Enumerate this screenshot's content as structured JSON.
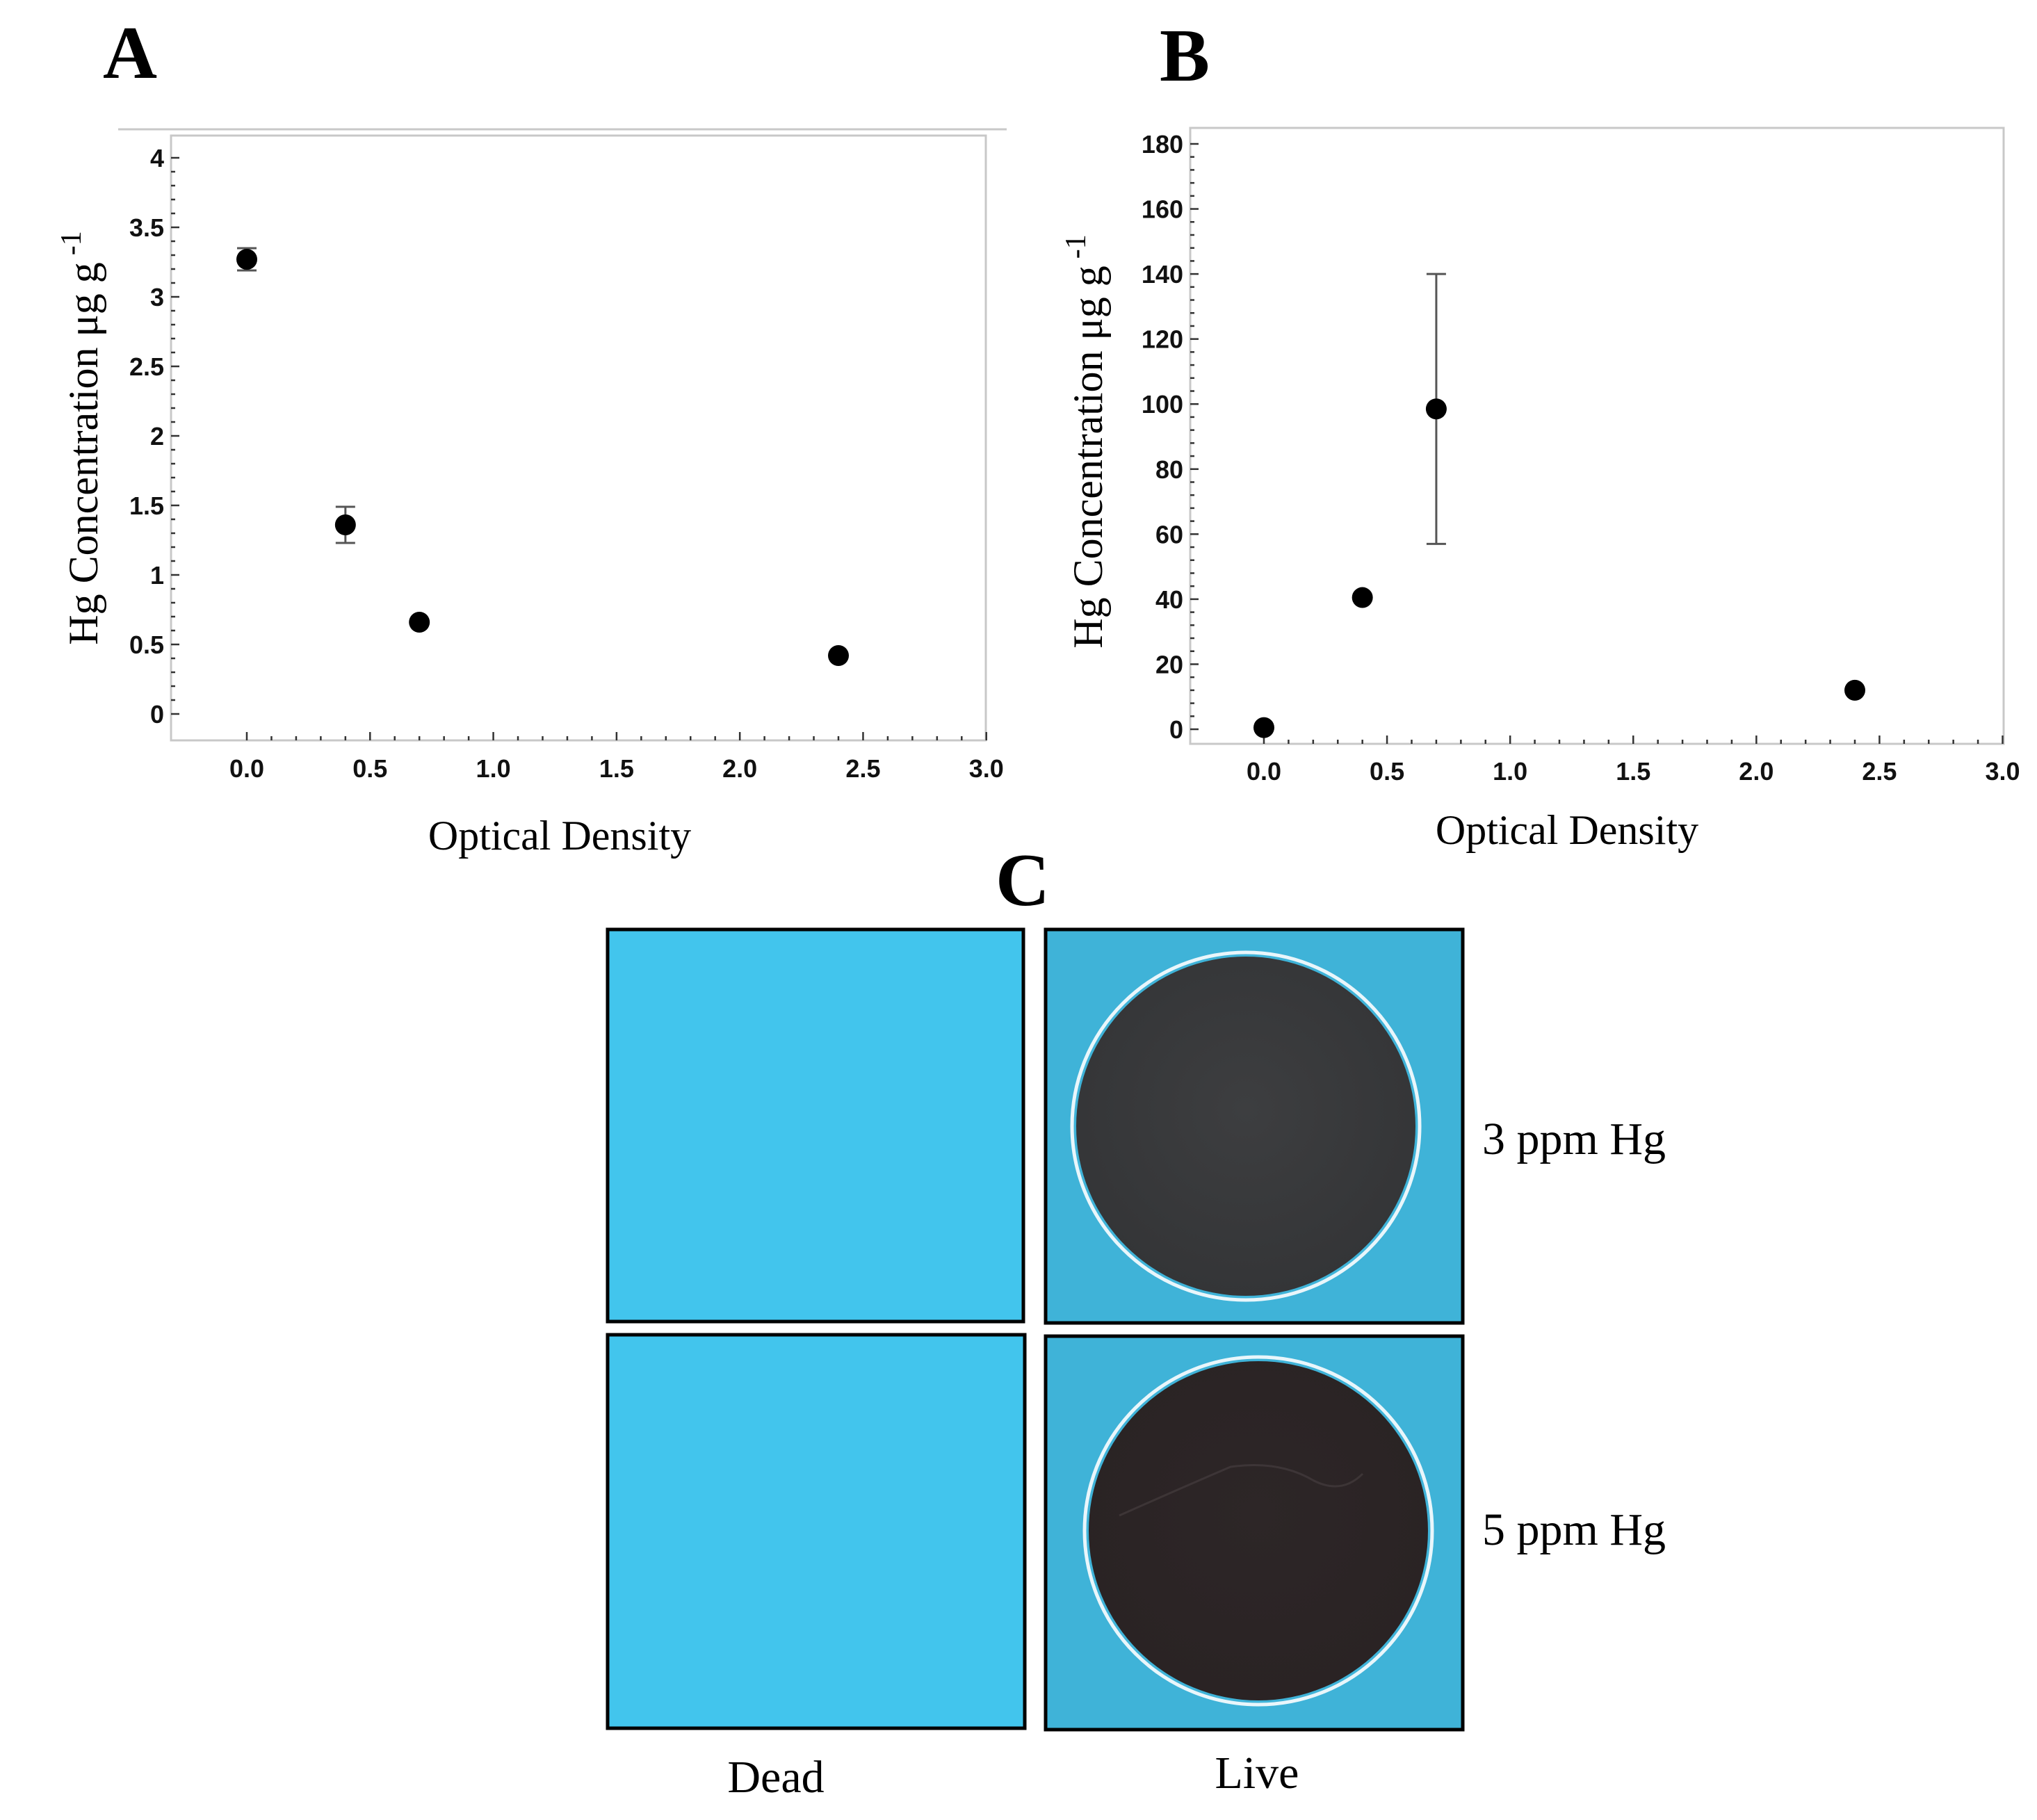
{
  "panels": {
    "a_letter": "A",
    "b_letter": "B",
    "c_letter": "C"
  },
  "chart_data": [
    {
      "id": "A",
      "type": "scatter",
      "title": "",
      "xlabel": "Optical Density",
      "ylabel": "Hg Concentration μg g",
      "ylabel_superscript": "-1",
      "xlim": [
        -0.3,
        3.0
      ],
      "ylim": [
        -0.2,
        4.2
      ],
      "xticks": [
        0.0,
        0.5,
        1.0,
        1.5,
        2.0,
        2.5,
        3.0
      ],
      "xtick_labels": [
        "0.0",
        "0.5",
        "1.0",
        "1.5",
        "2.0",
        "2.5",
        "3.0"
      ],
      "yticks": [
        0,
        0.5,
        1,
        1.5,
        2,
        2.5,
        3,
        3.5,
        4
      ],
      "ytick_labels": [
        "0",
        "0.5",
        "1",
        "1.5",
        "2",
        "2.5",
        "3",
        "3.5",
        "4"
      ],
      "points": [
        {
          "x": 0.0,
          "y": 3.27,
          "err": 0.08
        },
        {
          "x": 0.4,
          "y": 1.36,
          "err": 0.13
        },
        {
          "x": 0.7,
          "y": 0.66,
          "err": 0
        },
        {
          "x": 2.4,
          "y": 0.42,
          "err": 0
        }
      ],
      "grid": false
    },
    {
      "id": "B",
      "type": "scatter",
      "title": "",
      "xlabel": "Optical Density",
      "ylabel": "Hg Concentration μg g",
      "ylabel_superscript": "-1",
      "xlim": [
        -0.3,
        3.0
      ],
      "ylim": [
        -4,
        185
      ],
      "xticks": [
        0.0,
        0.5,
        1.0,
        1.5,
        2.0,
        2.5,
        3.0
      ],
      "xtick_labels": [
        "0.0",
        "0.5",
        "1.0",
        "1.5",
        "2.0",
        "2.5",
        "3.0"
      ],
      "yticks": [
        0,
        20,
        40,
        60,
        80,
        100,
        120,
        140,
        160,
        180
      ],
      "ytick_labels": [
        "0",
        "20",
        "40",
        "60",
        "80",
        "100",
        "120",
        "140",
        "160",
        "180"
      ],
      "points": [
        {
          "x": 0.0,
          "y": 0.5,
          "err": 0
        },
        {
          "x": 0.4,
          "y": 40.5,
          "err": 0
        },
        {
          "x": 0.7,
          "y": 98.5,
          "err": 41.5
        },
        {
          "x": 2.4,
          "y": 12,
          "err": 0
        }
      ],
      "grid": false
    }
  ],
  "panel_c": {
    "row_labels": [
      "3 ppm Hg",
      "5 ppm Hg"
    ],
    "col_labels": [
      "Dead",
      "Live"
    ],
    "background_color": "#42c5ed",
    "live_background_color": "#3fb3d8",
    "colony_color_3ppm": "#3a3a3c",
    "colony_color_5ppm": "#2c2526"
  }
}
